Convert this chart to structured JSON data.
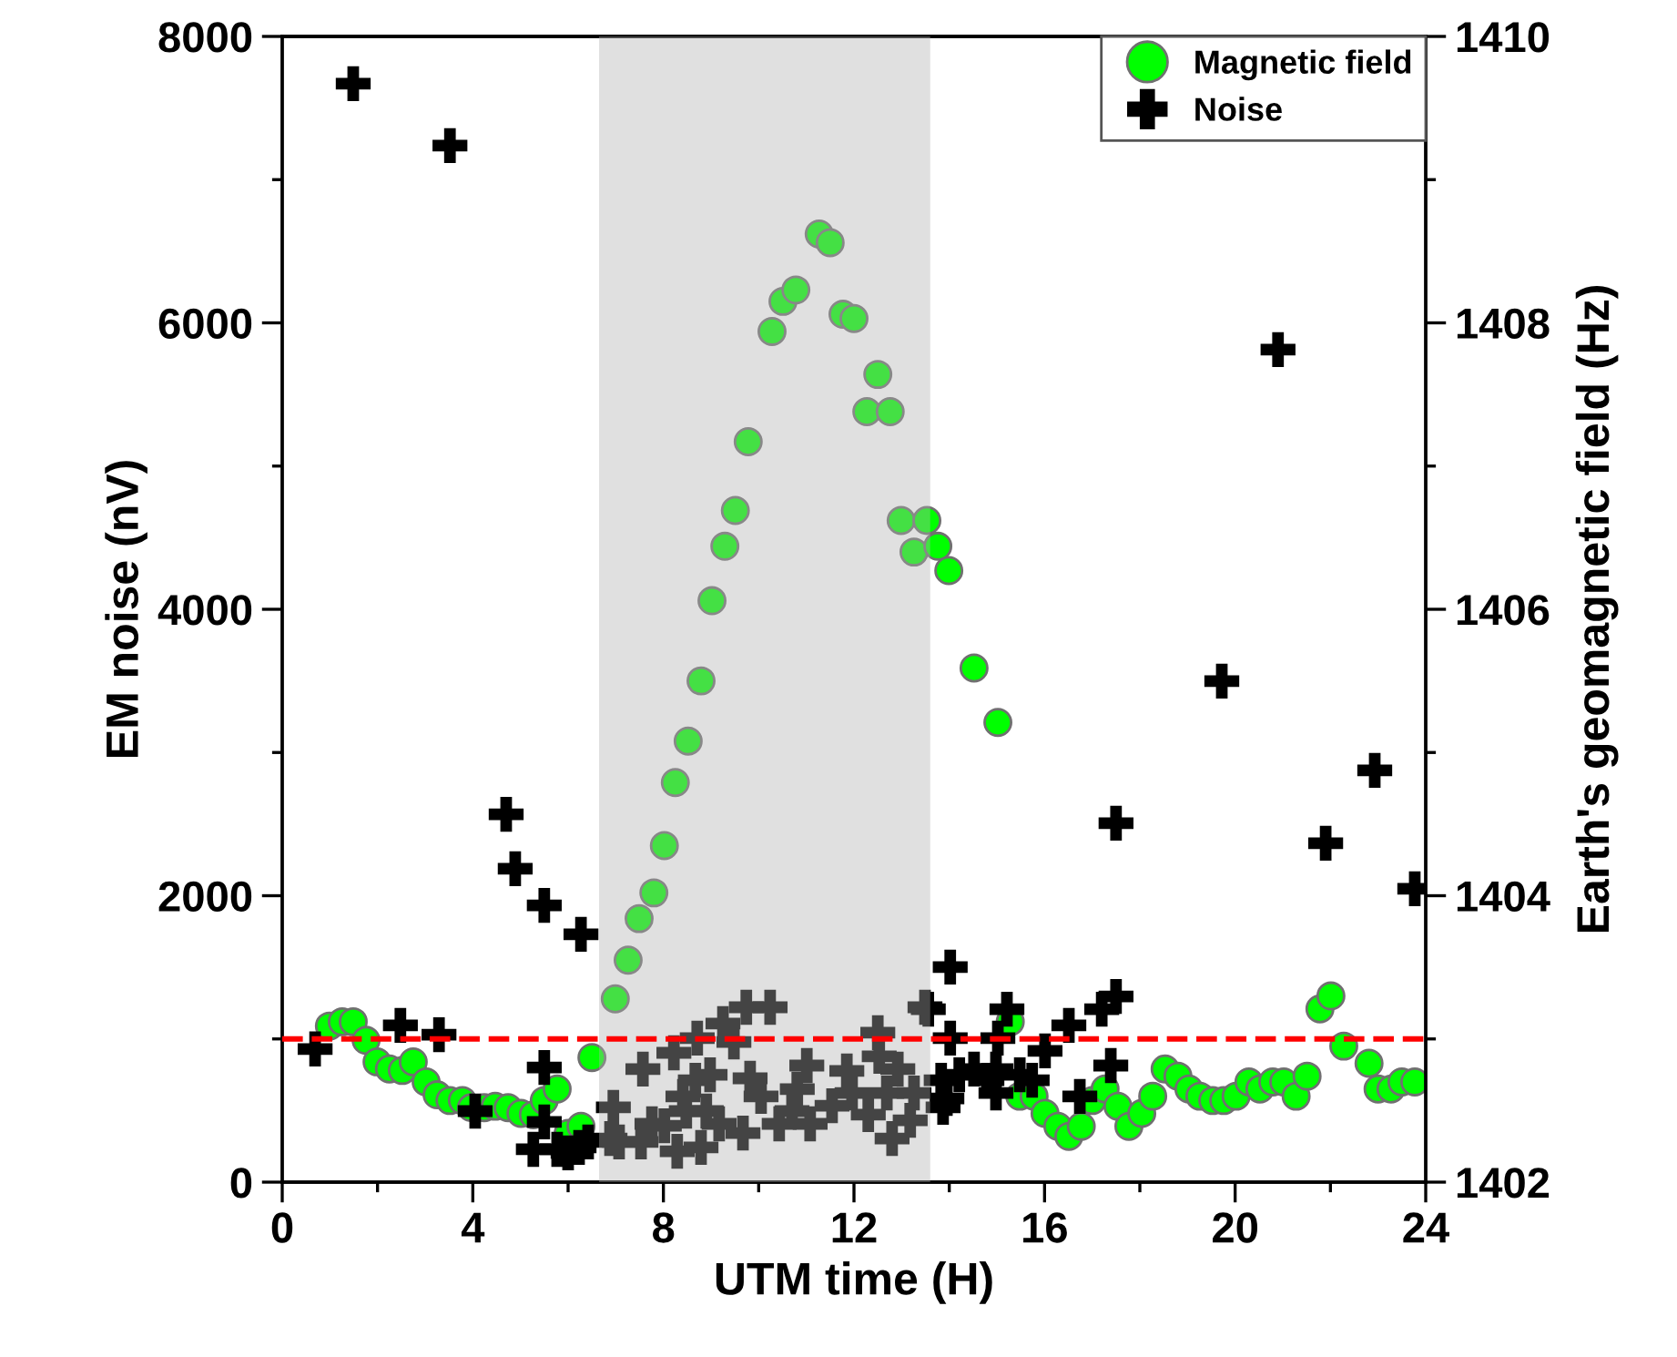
{
  "chart_data": {
    "type": "scatter",
    "xlabel": "UTM time (H)",
    "ylabel": "EM noise (nV)",
    "y2label": "Earth's geomagnetic field (Hz)",
    "xlim": [
      0,
      24
    ],
    "xticks": [
      0,
      4,
      8,
      12,
      16,
      20,
      24
    ],
    "ylim": [
      0,
      8000
    ],
    "yticks": [
      0,
      2000,
      4000,
      6000,
      8000
    ],
    "y2lim": [
      1402,
      1410
    ],
    "y2ticks": [
      1402,
      1404,
      1406,
      1408,
      1410
    ],
    "legend": "top right",
    "grid": false,
    "bands": [
      {
        "axis": "x",
        "from": 6.65,
        "to": 13.6,
        "color": "#aeaeae"
      }
    ],
    "ref_lines": [
      {
        "axis": "y",
        "value": 1000,
        "color": "#ff0000",
        "line_style": "dashed"
      }
    ],
    "series": [
      {
        "name": "Magnetic field",
        "color": "#00ff00",
        "marker": "circle",
        "axis": "y2",
        "x": [
          0.99,
          1.26,
          1.49,
          1.76,
          1.99,
          2.25,
          2.52,
          2.75,
          3.02,
          3.25,
          3.52,
          3.78,
          3.97,
          4.24,
          4.47,
          4.74,
          5.01,
          5.27,
          5.5,
          5.77,
          6.0,
          6.27,
          6.5,
          6.99,
          7.26,
          7.49,
          7.8,
          8.02,
          8.25,
          8.52,
          8.79,
          9.02,
          9.29,
          9.51,
          9.78,
          10.28,
          10.51,
          10.78,
          11.27,
          11.5,
          11.77,
          12.0,
          12.27,
          12.5,
          12.76,
          12.99,
          13.26,
          13.53,
          13.76,
          13.99,
          14.52,
          15.02,
          15.28,
          15.48,
          15.78,
          16.01,
          16.28,
          16.51,
          16.77,
          17.0,
          17.27,
          17.54,
          17.77,
          18.04,
          18.27,
          18.53,
          18.8,
          19.03,
          19.26,
          19.53,
          19.76,
          20.02,
          20.29,
          20.52,
          20.79,
          21.02,
          21.28,
          21.51,
          21.78,
          22.01,
          22.28,
          22.81,
          23.0,
          23.27,
          23.5,
          23.77
        ],
        "values": [
          1403.09,
          1403.12,
          1403.12,
          1402.99,
          1402.84,
          1402.79,
          1402.78,
          1402.84,
          1402.7,
          1402.61,
          1402.57,
          1402.57,
          1402.52,
          1402.52,
          1402.53,
          1402.52,
          1402.48,
          1402.47,
          1402.57,
          1402.65,
          1402.34,
          1402.39,
          1402.87,
          1403.28,
          1403.55,
          1403.84,
          1404.02,
          1404.35,
          1404.79,
          1405.08,
          1405.5,
          1406.06,
          1406.44,
          1406.69,
          1407.17,
          1407.94,
          1408.15,
          1408.23,
          1408.62,
          1408.56,
          1408.06,
          1408.03,
          1407.38,
          1407.64,
          1407.38,
          1406.62,
          1406.4,
          1406.62,
          1406.44,
          1406.27,
          1405.59,
          1405.21,
          1403.12,
          1402.6,
          1402.6,
          1402.48,
          1402.39,
          1402.32,
          1402.39,
          1402.57,
          1402.65,
          1402.53,
          1402.39,
          1402.48,
          1402.6,
          1402.79,
          1402.74,
          1402.65,
          1402.6,
          1402.57,
          1402.57,
          1402.6,
          1402.7,
          1402.65,
          1402.7,
          1402.7,
          1402.6,
          1402.74,
          1403.21,
          1403.3,
          1402.95,
          1402.83,
          1402.65,
          1402.65,
          1402.7,
          1402.7
        ]
      },
      {
        "name": "Noise",
        "color": "#000000",
        "marker": "cross",
        "x": [
          0.69,
          1.49,
          2.48,
          3.29,
          3.52,
          4.05,
          4.7,
          4.89,
          5.27,
          5.5,
          5.5,
          5.5,
          5.77,
          6.0,
          6.23,
          6.27,
          6.42,
          6.88,
          6.95,
          7.07,
          7.53,
          7.57,
          7.76,
          8.02,
          8.22,
          8.29,
          8.41,
          8.48,
          8.67,
          8.71,
          8.79,
          8.9,
          8.98,
          9.17,
          9.25,
          9.48,
          9.67,
          9.74,
          9.82,
          10.05,
          10.24,
          10.43,
          10.7,
          10.81,
          11.01,
          11.08,
          11.54,
          11.85,
          11.96,
          12.3,
          12.5,
          12.53,
          12.69,
          12.8,
          12.92,
          13.18,
          13.26,
          13.49,
          13.56,
          13.83,
          13.87,
          13.95,
          14.02,
          14.02,
          14.21,
          14.52,
          14.79,
          14.98,
          14.98,
          15.02,
          15.21,
          15.48,
          15.74,
          16.01,
          16.51,
          16.74,
          17.2,
          17.39,
          17.5,
          17.5,
          19.72,
          20.9,
          21.9,
          22.93,
          23.77
        ],
        "values": [
          930,
          7670,
          1094,
          1030,
          7238,
          496,
          2569,
          2188,
          229,
          801,
          420,
          1933,
          229,
          204,
          242,
          1730,
          280,
          305,
          522,
          280,
          280,
          789,
          407,
          394,
          903,
          216,
          598,
          496,
          712,
          1005,
          242,
          496,
          750,
          407,
          1107,
          979,
          343,
          1221,
          725,
          598,
          1221,
          407,
          496,
          649,
          814,
          407,
          534,
          776,
          623,
          471,
          1043,
          878,
          623,
          305,
          789,
          432,
          623,
          1221,
          1208,
          712,
          522,
          585,
          1501,
          1005,
          750,
          789,
          712,
          789,
          623,
          1005,
          1208,
          750,
          712,
          916,
          1094,
          598,
          1208,
          814,
          1297,
          2506,
          3498,
          5813,
          2366,
          2875,
          2048
        ]
      }
    ]
  }
}
